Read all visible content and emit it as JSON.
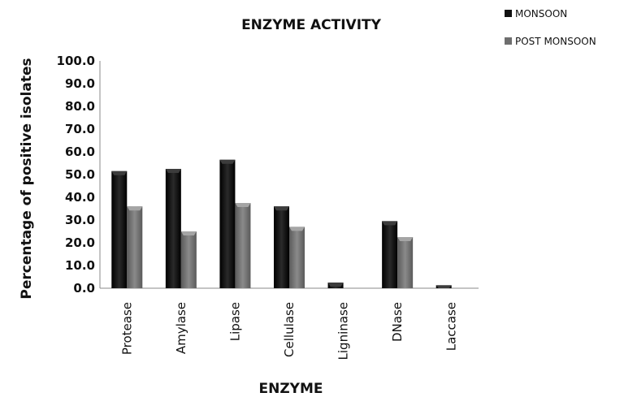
{
  "chart_data": {
    "type": "bar",
    "title": "ENZYME ACTIVITY",
    "xlabel": "ENZYME",
    "ylabel": "Percentage of positive isolates",
    "categories": [
      "Protease",
      "Amylase",
      "Lipase",
      "Cellulase",
      "Ligninase",
      "DNase",
      "Laccase"
    ],
    "series": [
      {
        "name": "MONSOON",
        "values": [
          51.5,
          52.5,
          56.5,
          36.0,
          2.5,
          29.5,
          1.3
        ],
        "color": "#111111"
      },
      {
        "name": "POST MONSOON",
        "values": [
          36.0,
          25.0,
          37.5,
          27.0,
          0.0,
          22.5,
          0.0
        ],
        "color": "#6e6e6e"
      }
    ],
    "ylim": [
      0,
      100
    ],
    "yticks": [
      "0.0",
      "10.0",
      "20.0",
      "30.0",
      "40.0",
      "50.0",
      "60.0",
      "70.0",
      "80.0",
      "90.0",
      "100.0"
    ],
    "grid": false,
    "legend_position": "top-right"
  }
}
